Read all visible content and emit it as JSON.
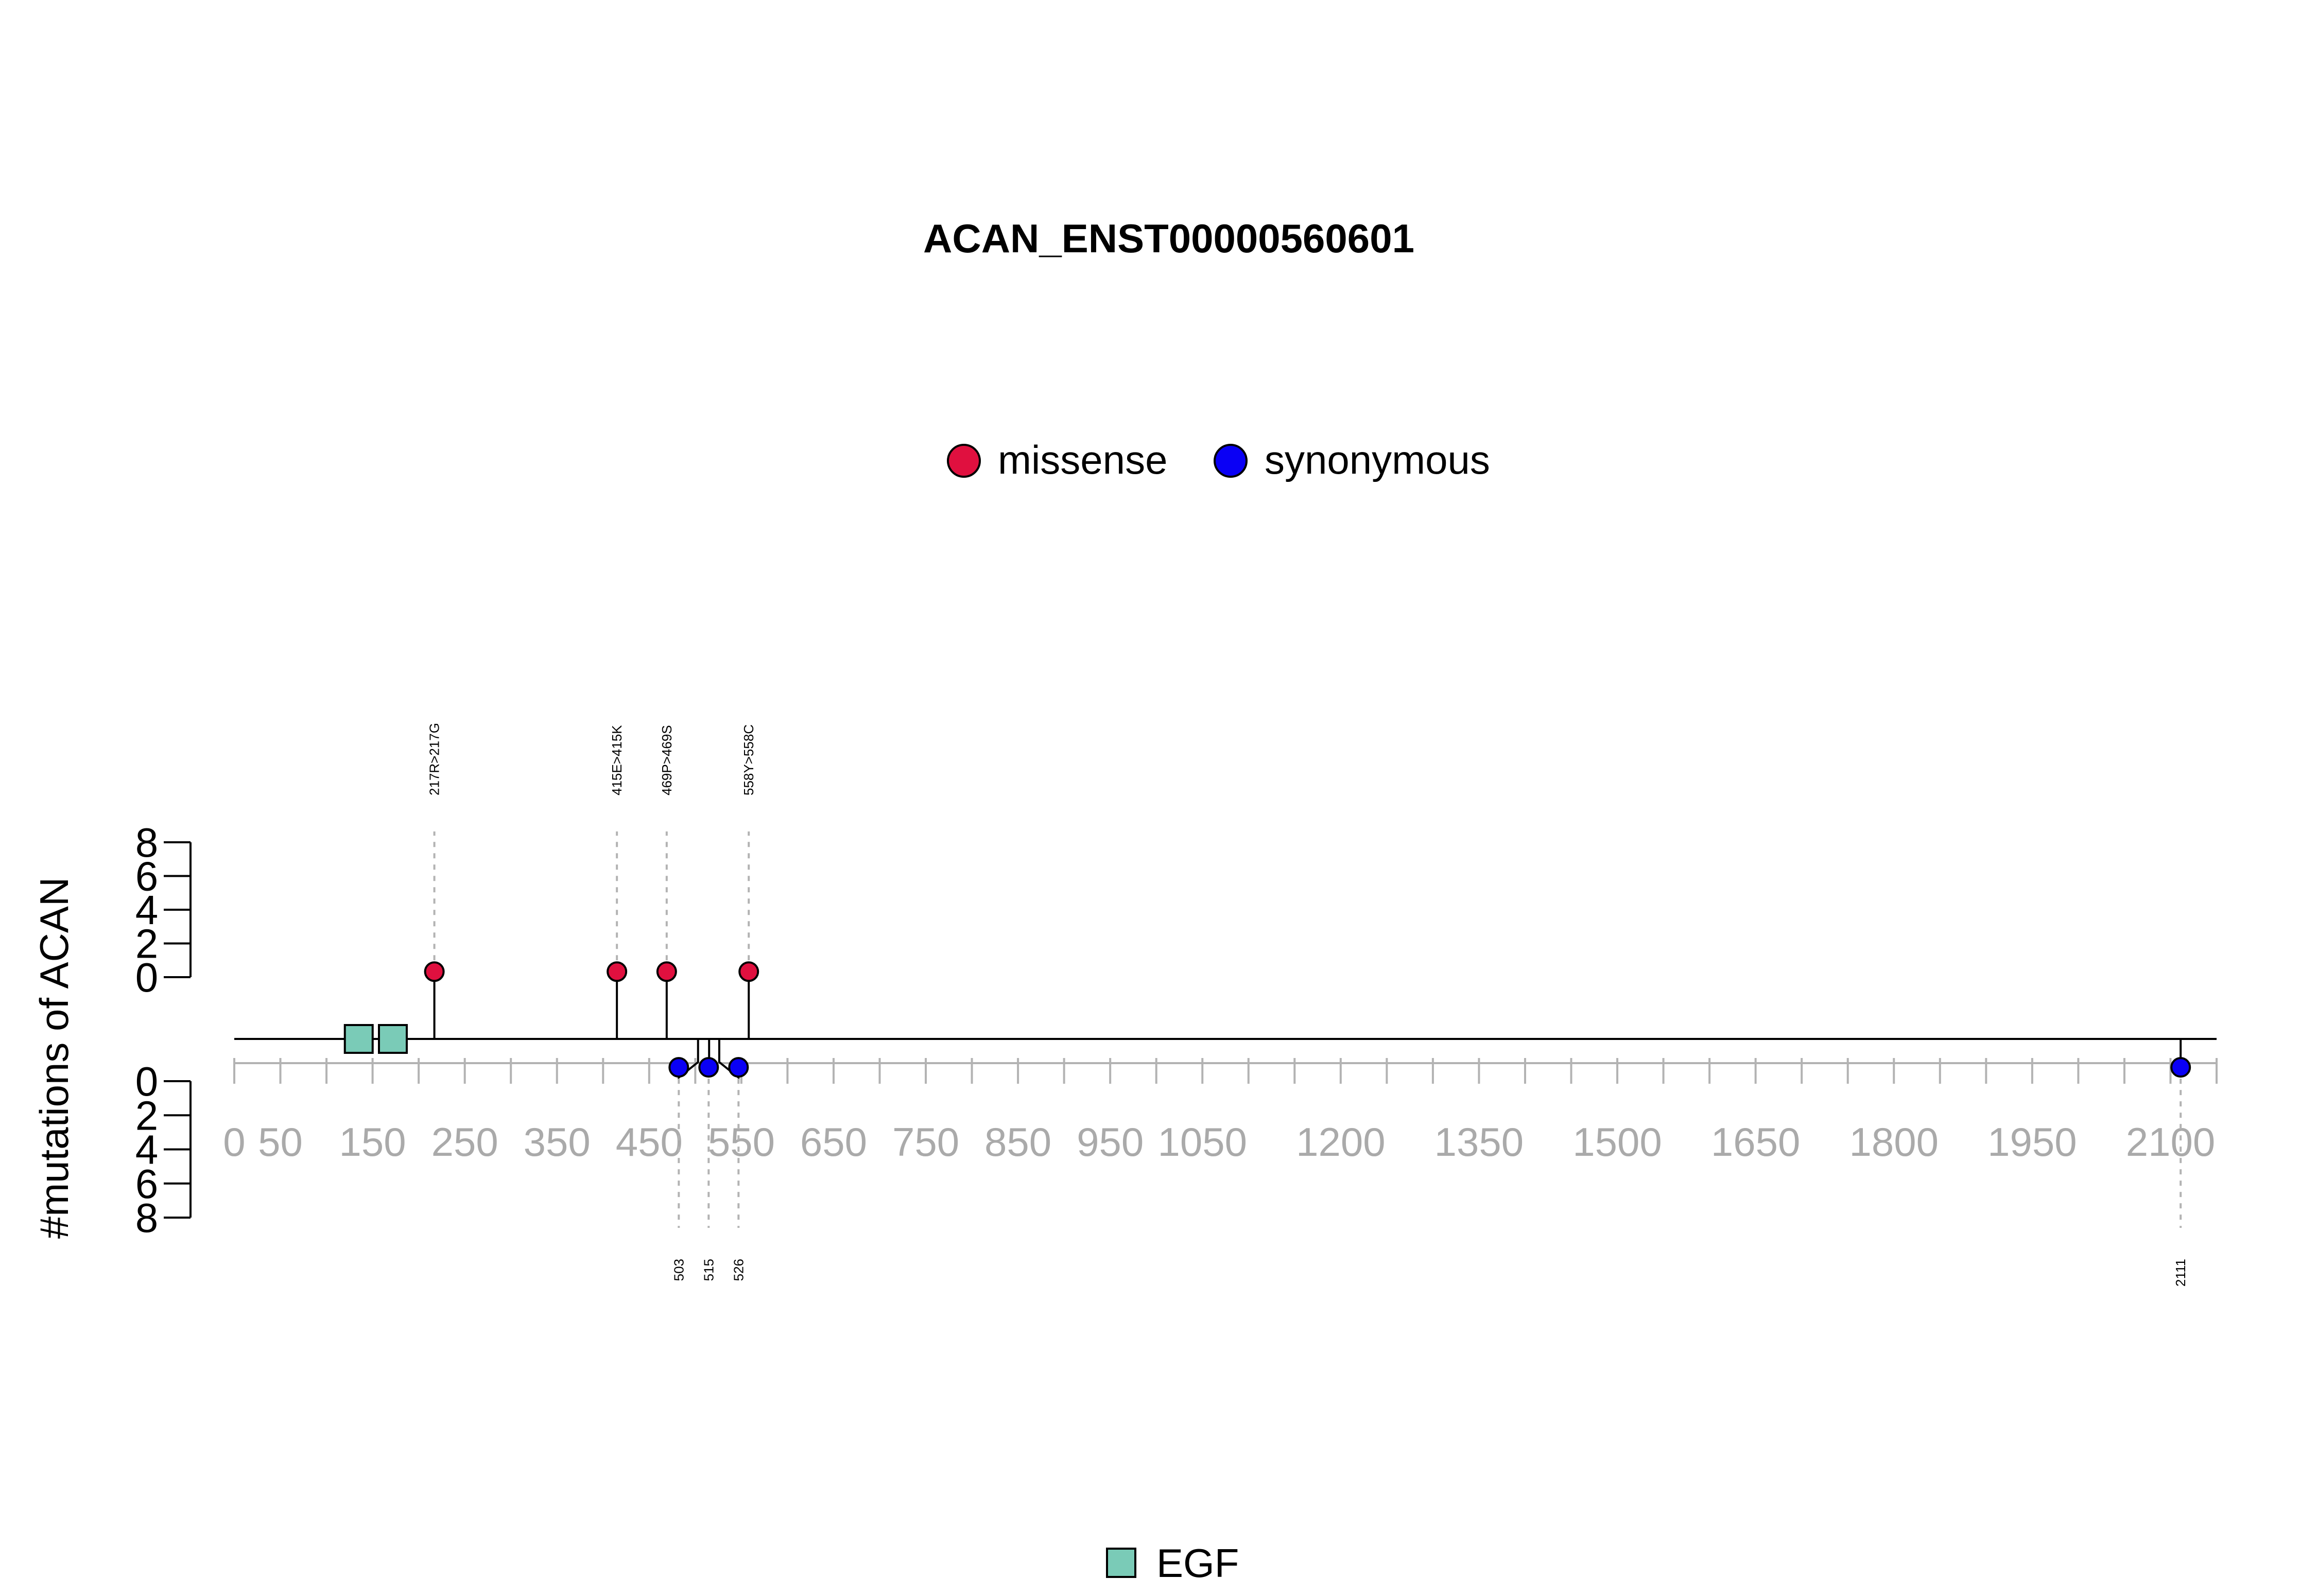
{
  "chart_data": {
    "type": "lollipop",
    "title": "ACAN_ENST00000560601",
    "ylabel": "#mutations of ACAN",
    "legend": {
      "position": "top-center",
      "items": [
        {
          "label": "missense",
          "color": "#E0103F"
        },
        {
          "label": "synonymous",
          "color": "#0A00F5"
        }
      ]
    },
    "domain_legend": {
      "position": "bottom-center",
      "items": [
        {
          "label": "EGF",
          "color": "#7ACBB7"
        }
      ]
    },
    "xlim": [
      0,
      2150
    ],
    "x_ticks": [
      0,
      50,
      150,
      250,
      350,
      450,
      550,
      650,
      750,
      850,
      950,
      1050,
      1200,
      1350,
      1500,
      1650,
      1800,
      1950,
      2100
    ],
    "x_tick_labels": [
      "0",
      "50",
      "150",
      "250",
      "350",
      "450",
      "550",
      "650",
      "750",
      "850",
      "950",
      "1050",
      "1200",
      "1350",
      "1500",
      "1650",
      "1800",
      "1950",
      "2100"
    ],
    "y_ticks_up": [
      "8",
      "6",
      "4",
      "2",
      "0"
    ],
    "y_ticks_down": [
      "0",
      "2",
      "4",
      "6",
      "8"
    ],
    "ylim": [
      0,
      8
    ],
    "domains": [
      {
        "name": "EGF",
        "center": 135
      },
      {
        "name": "EGF",
        "center": 172
      }
    ],
    "mutations_up": [
      {
        "pos": 217,
        "count": 1,
        "type": "missense",
        "label": "217R>217G"
      },
      {
        "pos": 415,
        "count": 1,
        "type": "missense",
        "label": "415E>415K"
      },
      {
        "pos": 469,
        "count": 1,
        "type": "missense",
        "label": "469P>469S"
      },
      {
        "pos": 558,
        "count": 1,
        "type": "missense",
        "label": "558Y>558C"
      }
    ],
    "mutations_down": [
      {
        "pos": 503,
        "count": 1,
        "type": "synonymous",
        "label": "503"
      },
      {
        "pos": 515,
        "count": 1,
        "type": "synonymous",
        "label": "515"
      },
      {
        "pos": 526,
        "count": 1,
        "type": "synonymous",
        "label": "526"
      },
      {
        "pos": 2111,
        "count": 1,
        "type": "synonymous",
        "label": "2111"
      }
    ]
  }
}
